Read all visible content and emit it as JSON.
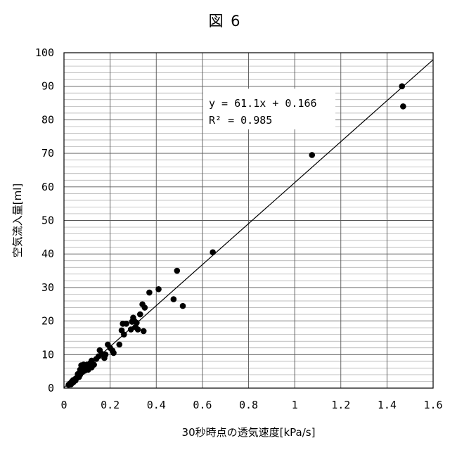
{
  "figure_title": "図 6",
  "chart_data": {
    "type": "scatter",
    "title": "図 6",
    "xlabel": "30秒時点の透気速度[kPa/s]",
    "ylabel": "空気流入量[ml]",
    "xlim": [
      0,
      1.6
    ],
    "ylim": [
      0,
      100
    ],
    "x_ticks": [
      0,
      0.2,
      0.4,
      0.6,
      0.8,
      1,
      1.2,
      1.4,
      1.6
    ],
    "x_tick_labels": [
      "0",
      "0.2",
      "0.4",
      "0.6",
      "0.8",
      "1",
      "1.2",
      "1.4",
      "1.6"
    ],
    "y_ticks": [
      0,
      10,
      20,
      30,
      40,
      50,
      60,
      70,
      80,
      90,
      100
    ],
    "y_tick_labels": [
      "0",
      "10",
      "20",
      "30",
      "40",
      "50",
      "60",
      "70",
      "80",
      "90",
      "100"
    ],
    "grid": {
      "major_x": true,
      "major_y": true,
      "minor_y": true
    },
    "series": [
      {
        "points": [
          [
            0.02,
            1.0
          ],
          [
            0.025,
            1.3
          ],
          [
            0.03,
            1.6
          ],
          [
            0.03,
            1.1
          ],
          [
            0.035,
            2.0
          ],
          [
            0.04,
            1.7
          ],
          [
            0.04,
            2.4
          ],
          [
            0.045,
            2.2
          ],
          [
            0.05,
            2.8
          ],
          [
            0.05,
            2.3
          ],
          [
            0.055,
            3.0
          ],
          [
            0.06,
            3.5
          ],
          [
            0.06,
            4.2
          ],
          [
            0.065,
            3.3
          ],
          [
            0.07,
            4.0
          ],
          [
            0.07,
            5.5
          ],
          [
            0.075,
            6.8
          ],
          [
            0.08,
            6.0
          ],
          [
            0.08,
            4.8
          ],
          [
            0.085,
            7.0
          ],
          [
            0.09,
            5.2
          ],
          [
            0.09,
            6.3
          ],
          [
            0.095,
            5.8
          ],
          [
            0.1,
            7.0
          ],
          [
            0.1,
            6.5
          ],
          [
            0.105,
            5.5
          ],
          [
            0.11,
            6.8
          ],
          [
            0.115,
            7.5
          ],
          [
            0.12,
            6.2
          ],
          [
            0.12,
            8.2
          ],
          [
            0.13,
            7.0
          ],
          [
            0.14,
            8.7
          ],
          [
            0.15,
            9.5
          ],
          [
            0.155,
            11.3
          ],
          [
            0.165,
            10.2
          ],
          [
            0.175,
            9.0
          ],
          [
            0.18,
            10.0
          ],
          [
            0.19,
            13.0
          ],
          [
            0.2,
            12.0
          ],
          [
            0.21,
            11.2
          ],
          [
            0.215,
            10.5
          ],
          [
            0.24,
            13.0
          ],
          [
            0.25,
            17.2
          ],
          [
            0.255,
            19.2
          ],
          [
            0.26,
            16.0
          ],
          [
            0.27,
            19.2
          ],
          [
            0.29,
            17.5
          ],
          [
            0.295,
            19.8
          ],
          [
            0.3,
            21.0
          ],
          [
            0.305,
            20.0
          ],
          [
            0.31,
            18.2
          ],
          [
            0.315,
            19.5
          ],
          [
            0.32,
            17.5
          ],
          [
            0.33,
            22.0
          ],
          [
            0.34,
            25.0
          ],
          [
            0.345,
            17.0
          ],
          [
            0.35,
            24.0
          ],
          [
            0.37,
            28.5
          ],
          [
            0.41,
            29.5
          ],
          [
            0.475,
            26.5
          ],
          [
            0.49,
            35.0
          ],
          [
            0.515,
            24.5
          ],
          [
            0.645,
            40.5
          ],
          [
            1.075,
            69.5
          ],
          [
            1.465,
            90.0
          ],
          [
            1.47,
            84.0
          ]
        ]
      }
    ],
    "trendline": {
      "slope": 61.1,
      "intercept": 0.166
    },
    "annotation": {
      "equation": "y = 61.1x + 0.166",
      "r2": "R² = 0.985"
    }
  }
}
